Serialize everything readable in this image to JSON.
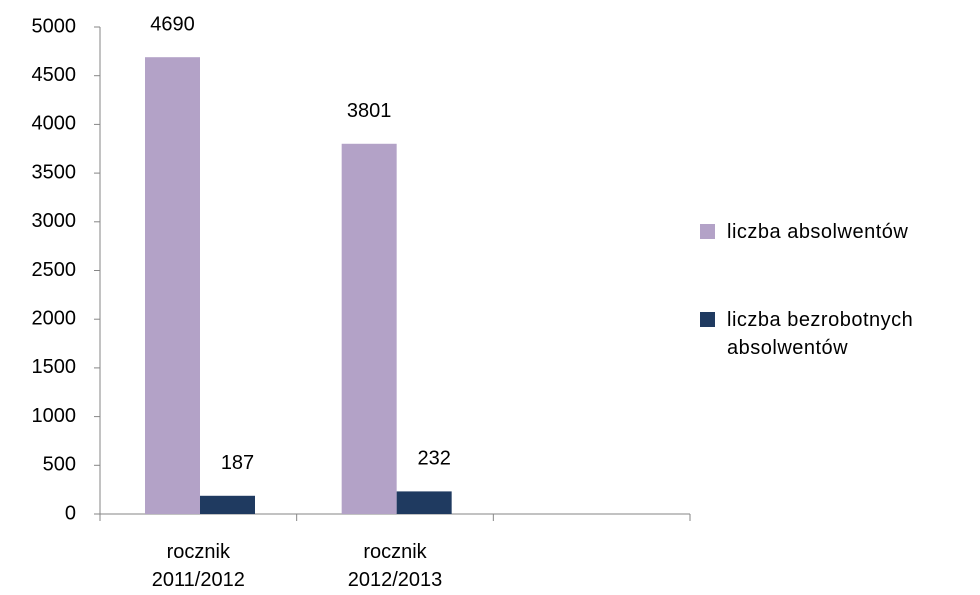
{
  "chart_data": {
    "type": "bar",
    "categories": [
      "rocznik 2011/2012",
      "rocznik 2012/2013",
      null
    ],
    "series": [
      {
        "name": "liczba absolwentów",
        "color": "#b3a2c7",
        "values": [
          4690,
          3801,
          null
        ]
      },
      {
        "name": "liczba bezrobotnych absolwentów",
        "color": "#1f3a60",
        "values": [
          187,
          232,
          null
        ]
      }
    ],
    "ylim": [
      0,
      5000
    ],
    "yticks": [
      0,
      500,
      1000,
      1500,
      2000,
      2500,
      3000,
      3500,
      4000,
      4500,
      5000
    ],
    "grid": false,
    "legend": "right"
  }
}
